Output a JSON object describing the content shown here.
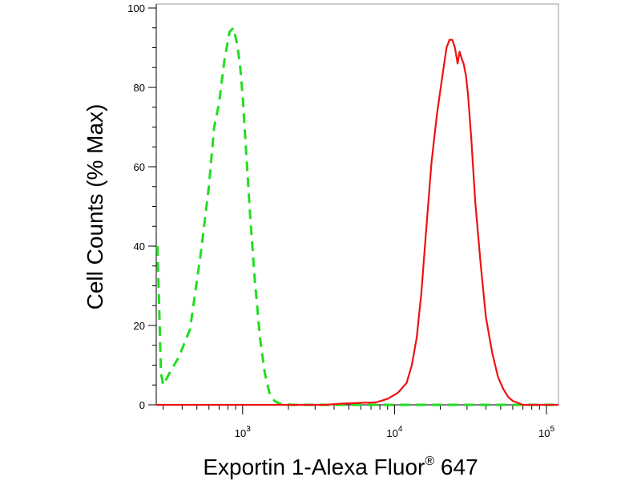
{
  "chart_data": {
    "type": "line",
    "title": "",
    "xlabel": "Exportin 1-Alexa Fluor",
    "xlabel_sup": "®",
    "xlabel_suffix": " 647",
    "ylabel": "Cell Counts (% Max)",
    "xscale": "log",
    "xlim": [
      270,
      120000
    ],
    "ylim": [
      0,
      100
    ],
    "y_ticks": [
      0,
      20,
      40,
      60,
      80,
      100
    ],
    "x_ticks": [
      {
        "value": 1000,
        "base": "10",
        "exp": "3"
      },
      {
        "value": 10000,
        "base": "10",
        "exp": "4"
      },
      {
        "value": 100000,
        "base": "10",
        "exp": "5"
      }
    ],
    "grid": false,
    "series": [
      {
        "color": "#22dd22",
        "dash": "dashed",
        "x": [
          275,
          282,
          290,
          300,
          330,
          380,
          450,
          530,
          600,
          650,
          700,
          760,
          820,
          870,
          920,
          960,
          1000,
          1050,
          1120,
          1200,
          1300,
          1400,
          1500,
          1620,
          1750,
          1900,
          2100,
          2300,
          3000,
          6000,
          12000,
          30000,
          80000,
          120000
        ],
        "y": [
          40,
          25,
          8,
          5,
          8,
          12,
          19,
          38,
          55,
          70,
          76,
          87,
          94,
          95,
          91,
          86,
          78,
          65,
          48,
          32,
          17,
          8,
          3,
          1,
          0.3,
          0.2,
          0,
          0,
          0,
          0,
          0,
          0,
          0,
          0
        ]
      },
      {
        "color": "#ee1111",
        "dash": "solid",
        "x": [
          270,
          2000,
          3500,
          4500,
          6000,
          7500,
          9000,
          10500,
          12000,
          13000,
          14000,
          15000,
          16000,
          17500,
          19000,
          20500,
          22000,
          23000,
          24000,
          25000,
          26000,
          26800,
          27800,
          28500,
          29500,
          30500,
          32000,
          34000,
          37000,
          40000,
          44000,
          48000,
          52000,
          56000,
          60000,
          65000,
          70000,
          80000,
          120000
        ],
        "y": [
          0,
          0,
          0,
          0.3,
          0.5,
          0.6,
          1.5,
          3,
          5.5,
          10,
          17,
          28,
          42,
          61,
          73,
          82,
          90,
          92,
          92,
          90,
          86,
          89,
          87,
          86,
          83,
          78,
          67,
          51,
          35,
          22,
          13,
          7,
          4,
          2,
          1,
          0.5,
          0,
          0,
          0
        ]
      }
    ]
  }
}
